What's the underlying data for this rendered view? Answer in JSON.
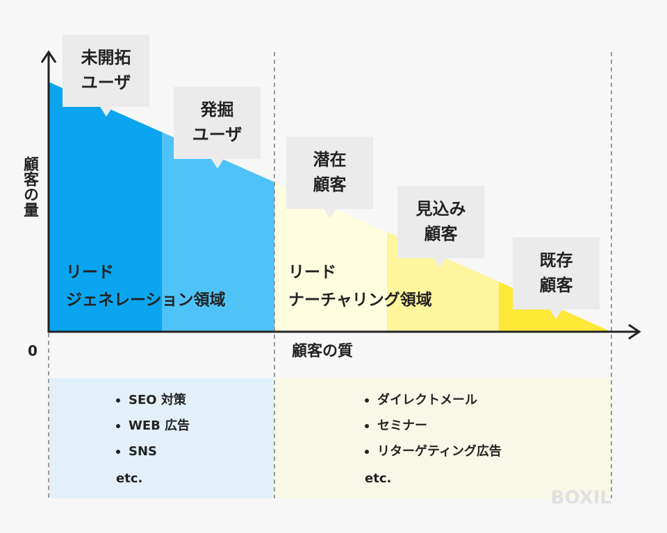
{
  "y_axis_label": "顧客の量",
  "origin_label": "0",
  "x_axis_label": "顧客の質",
  "callouts": [
    {
      "lines": [
        "未開拓",
        "ユーザ"
      ]
    },
    {
      "lines": [
        "発掘",
        "ユーザ"
      ]
    },
    {
      "lines": [
        "潜在",
        "顧客"
      ]
    },
    {
      "lines": [
        "見込み",
        "顧客"
      ]
    },
    {
      "lines": [
        "既存",
        "顧客"
      ]
    }
  ],
  "regions": [
    {
      "lines": [
        "リード",
        "ジェネレーション領域"
      ],
      "items": [
        "SEO 対策",
        "WEB 広告",
        "SNS"
      ],
      "etc": "etc."
    },
    {
      "lines": [
        "リード",
        "ナーチャリング領域"
      ],
      "items": [
        "ダイレクトメール",
        "セミナー",
        "リターゲティング広告"
      ],
      "etc": "etc."
    }
  ],
  "watermark": "BOXIL"
}
